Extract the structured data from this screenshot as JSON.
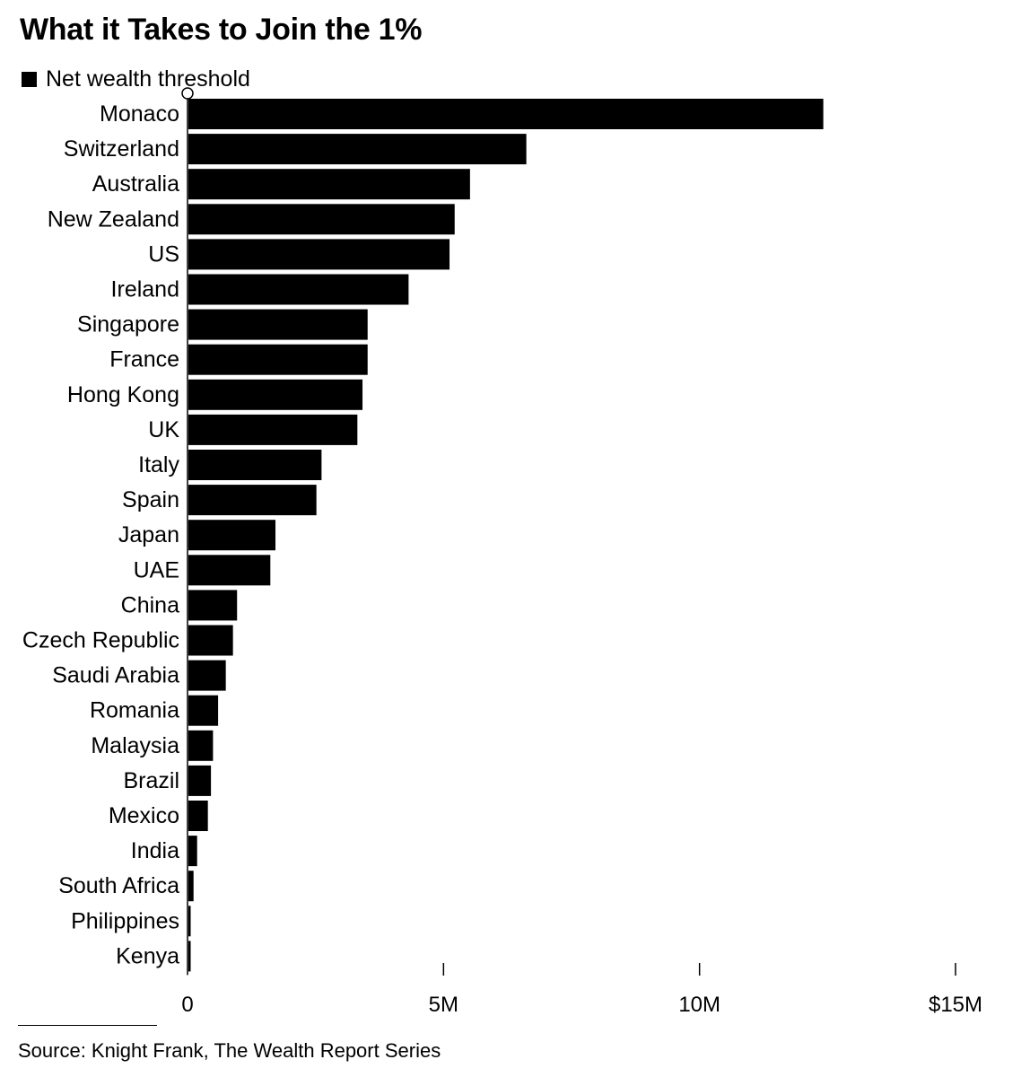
{
  "chart_data": {
    "type": "bar",
    "orientation": "horizontal",
    "title": "What it Takes to Join the 1%",
    "legend": {
      "label": "Net wealth threshold",
      "placement": "top-left"
    },
    "categories": [
      "Monaco",
      "Switzerland",
      "Australia",
      "New Zealand",
      "US",
      "Ireland",
      "Singapore",
      "France",
      "Hong Kong",
      "UK",
      "Italy",
      "Spain",
      "Japan",
      "UAE",
      "China",
      "Czech Republic",
      "Saudi Arabia",
      "Romania",
      "Malaysia",
      "Brazil",
      "Mexico",
      "India",
      "South Africa",
      "Philippines",
      "Kenya"
    ],
    "series": [
      {
        "name": "Net wealth threshold",
        "values": [
          12.4,
          6.6,
          5.5,
          5.2,
          5.1,
          4.3,
          3.5,
          3.5,
          3.4,
          3.3,
          2.6,
          2.5,
          1.7,
          1.6,
          0.95,
          0.87,
          0.73,
          0.58,
          0.48,
          0.44,
          0.38,
          0.17,
          0.1,
          0.04,
          0.04
        ]
      }
    ],
    "x_unit": "millions USD",
    "xlim": [
      0,
      15
    ],
    "xticks": [
      0,
      5,
      10,
      15
    ],
    "xtick_labels": [
      "0",
      "5M",
      "10M",
      "$15M"
    ],
    "grid": false,
    "color": "#000000"
  },
  "source": "Source: Knight Frank, The Wealth Report Series"
}
